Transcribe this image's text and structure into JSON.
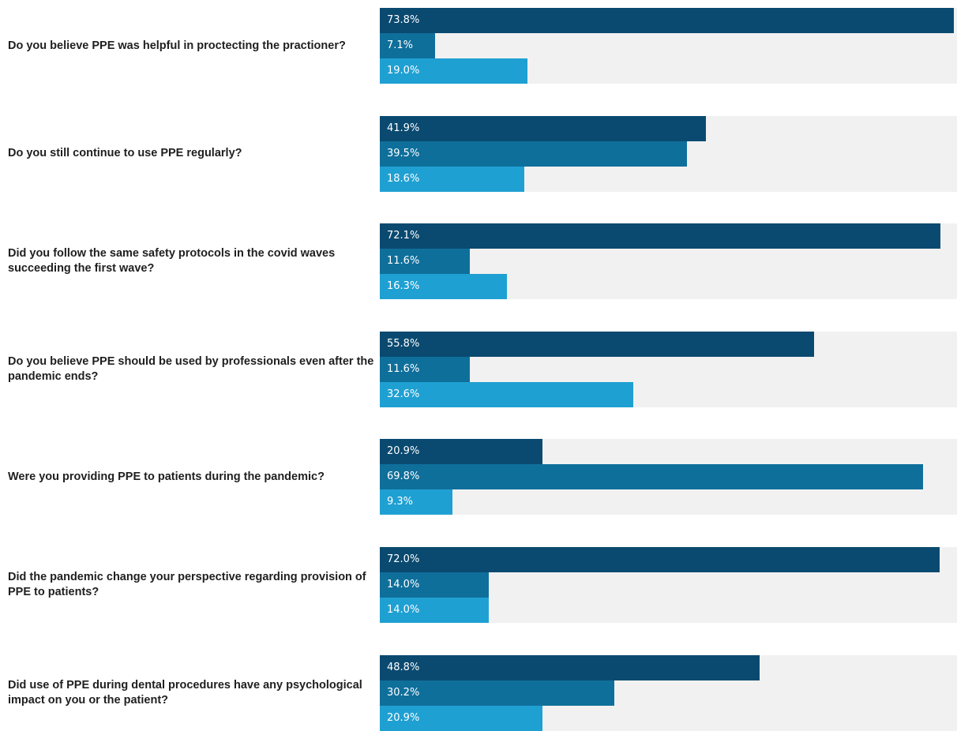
{
  "chart_data": {
    "type": "bar",
    "orientation": "horizontal",
    "xlim": [
      0,
      73.8
    ],
    "colors": [
      "#0a4a70",
      "#0f6f9b",
      "#1fa0d2"
    ],
    "track_color": "#f1f1f1",
    "groups": [
      {
        "question": "Do you believe PPE was helpful in proctecting the practioner?",
        "values": [
          73.8,
          7.1,
          19.0
        ],
        "labels": [
          "73.8%",
          "7.1%",
          "19.0%"
        ]
      },
      {
        "question": "Do you still continue to use PPE regularly?",
        "values": [
          41.9,
          39.5,
          18.6
        ],
        "labels": [
          "41.9%",
          "39.5%",
          "18.6%"
        ]
      },
      {
        "question": "Did you follow the same safety protocols in the covid waves succeeding the first wave?",
        "values": [
          72.1,
          11.6,
          16.3
        ],
        "labels": [
          "72.1%",
          "11.6%",
          "16.3%"
        ]
      },
      {
        "question": "Do you believe PPE should be used by professionals even after the pandemic ends?",
        "values": [
          55.8,
          11.6,
          32.6
        ],
        "labels": [
          "55.8%",
          "11.6%",
          "32.6%"
        ]
      },
      {
        "question": "Were you providing PPE to patients during the pandemic?",
        "values": [
          20.9,
          69.8,
          9.3
        ],
        "labels": [
          "20.9%",
          "69.8%",
          "9.3%"
        ]
      },
      {
        "question": "Did the pandemic change your perspective regarding provision of PPE to patients?",
        "values": [
          72.0,
          14.0,
          14.0
        ],
        "labels": [
          "72.0%",
          "14.0%",
          "14.0%"
        ]
      },
      {
        "question": "Did use of PPE during dental procedures have any psychological impact on you or the patient?",
        "values": [
          48.8,
          30.2,
          20.9
        ],
        "labels": [
          "48.8%",
          "30.2%",
          "20.9%"
        ]
      }
    ]
  }
}
